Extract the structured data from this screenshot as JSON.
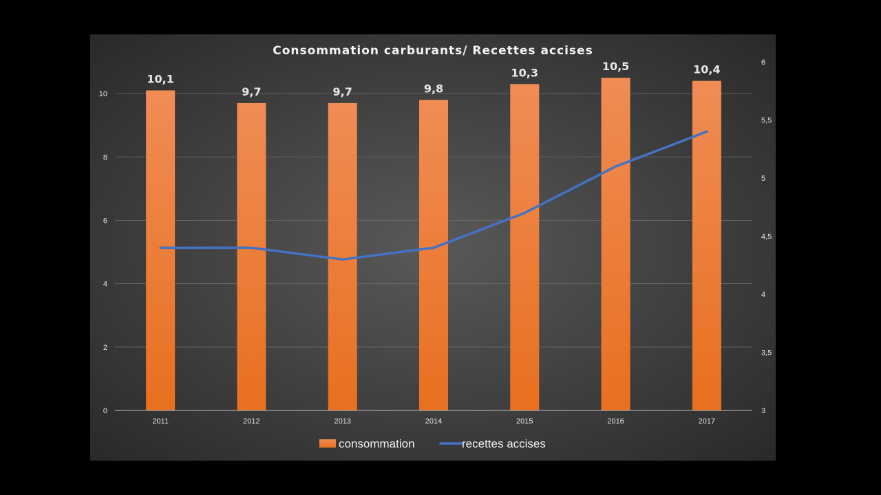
{
  "chart_data": {
    "type": "bar",
    "title": "Consommation carburants/  Recettes accises",
    "categories": [
      "2011",
      "2012",
      "2013",
      "2014",
      "2015",
      "2016",
      "2017"
    ],
    "series": [
      {
        "name": "consommation",
        "type": "bar",
        "axis": "left",
        "color": "#f07a2a",
        "values": [
          10.1,
          9.7,
          9.7,
          9.8,
          10.3,
          10.5,
          10.4
        ],
        "labels": [
          "10,1",
          "9,7",
          "9,7",
          "9,8",
          "10,3",
          "10,5",
          "10,4"
        ]
      },
      {
        "name": "recettes accises",
        "type": "line",
        "axis": "right",
        "color": "#4472c4",
        "values": [
          4.4,
          4.4,
          4.3,
          4.4,
          4.7,
          5.1,
          5.4
        ]
      }
    ],
    "y_left": {
      "min": 0,
      "max": 11,
      "ticks": [
        0,
        2,
        4,
        6,
        8,
        10
      ],
      "tick_labels": [
        "0",
        "2",
        "4",
        "6",
        "8",
        "10"
      ]
    },
    "y_right": {
      "min": 3,
      "max": 6,
      "ticks": [
        3,
        3.5,
        4,
        4.5,
        5,
        5.5,
        6
      ],
      "tick_labels": [
        "3",
        "3,5",
        "4",
        "4,5",
        "5",
        "5,5",
        "6"
      ]
    },
    "grid": true,
    "legend": "bottom"
  }
}
